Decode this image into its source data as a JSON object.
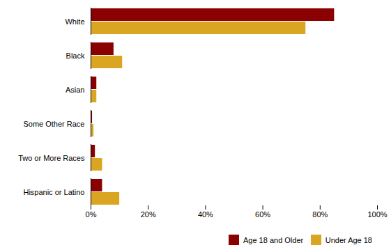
{
  "chart_data": {
    "type": "bar",
    "orientation": "horizontal",
    "categories": [
      "White",
      "Black",
      "Asian",
      "Some Other Race",
      "Two or More Races",
      "Hispanic or Latino"
    ],
    "series": [
      {
        "name": "Age 18 and Older",
        "color": "#8B0000",
        "values": [
          85,
          8,
          2,
          0.5,
          1.5,
          4
        ]
      },
      {
        "name": "Under Age 18",
        "color": "#DAA520",
        "values": [
          75,
          11,
          2,
          1,
          4,
          10
        ]
      }
    ],
    "xlim": [
      0,
      100
    ],
    "xticks": [
      {
        "value": 0,
        "label": "0%"
      },
      {
        "value": 20,
        "label": "20%"
      },
      {
        "value": 40,
        "label": "40%"
      },
      {
        "value": 60,
        "label": "60%"
      },
      {
        "value": 80,
        "label": "80%"
      },
      {
        "value": 100,
        "label": "100%"
      }
    ],
    "grid": false,
    "legend": "lower right"
  }
}
